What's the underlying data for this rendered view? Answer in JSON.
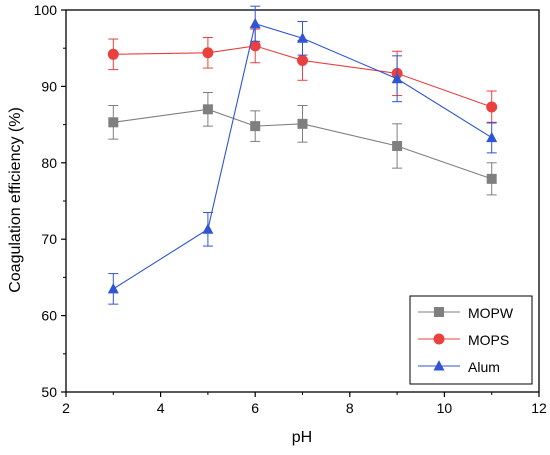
{
  "chart_data": {
    "type": "line",
    "title": "",
    "xlabel": "pH",
    "ylabel": "Coagulation efficiency (%)",
    "xlim": [
      2,
      12
    ],
    "ylim": [
      50,
      100
    ],
    "xticks": [
      2,
      4,
      6,
      8,
      10,
      12
    ],
    "yticks": [
      50,
      60,
      70,
      80,
      90,
      100
    ],
    "grid": false,
    "legend_position": "bottom-right",
    "series": [
      {
        "name": "MOPW",
        "color": "#7f7f7f",
        "marker": "square",
        "x": [
          3,
          5,
          6,
          7,
          9,
          11
        ],
        "y": [
          85.3,
          87.0,
          84.8,
          85.1,
          82.2,
          77.9
        ],
        "err": [
          2.2,
          2.2,
          2.0,
          2.4,
          2.9,
          2.1
        ]
      },
      {
        "name": "MOPS",
        "color": "#e8413f",
        "marker": "circle",
        "x": [
          3,
          5,
          6,
          7,
          9,
          11
        ],
        "y": [
          94.2,
          94.4,
          95.3,
          93.4,
          91.7,
          87.3
        ],
        "err": [
          2.0,
          2.0,
          2.2,
          2.6,
          2.9,
          2.1
        ]
      },
      {
        "name": "Alum",
        "color": "#2f55d4",
        "marker": "triangle",
        "x": [
          3,
          5,
          6,
          7,
          9,
          11
        ],
        "y": [
          63.5,
          71.3,
          98.2,
          96.3,
          91.0,
          83.3
        ],
        "err": [
          2.0,
          2.2,
          2.3,
          2.2,
          3.0,
          2.0
        ]
      }
    ]
  }
}
